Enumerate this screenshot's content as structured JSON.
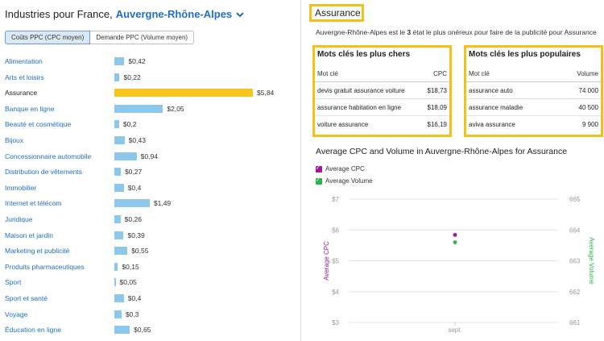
{
  "header": {
    "title_prefix": "Industries pour France,",
    "region": "Auvergne-Rhône-Alpes"
  },
  "toggle": {
    "cpc_label": "Coûts PPC (CPC moyen)",
    "demand_label": "Demande PPC (Volume moyen)"
  },
  "industries": [
    {
      "label": "Alimentation",
      "value": 0.42,
      "display": "$0,42"
    },
    {
      "label": "Arts et loisirs",
      "value": 0.22,
      "display": "$0,22"
    },
    {
      "label": "Assurance",
      "value": 5.84,
      "display": "$5,84",
      "selected": true
    },
    {
      "label": "Banque en ligne",
      "value": 2.05,
      "display": "$2,05"
    },
    {
      "label": "Beauté et cosmétique",
      "value": 0.2,
      "display": "$0,2"
    },
    {
      "label": "Bijoux",
      "value": 0.43,
      "display": "$0,43"
    },
    {
      "label": "Concessionnaire automobile",
      "value": 0.94,
      "display": "$0,94"
    },
    {
      "label": "Distribution de vêtements",
      "value": 0.27,
      "display": "$0,27"
    },
    {
      "label": "Immobilier",
      "value": 0.4,
      "display": "$0,4"
    },
    {
      "label": "Internet et télécom",
      "value": 1.49,
      "display": "$1,49"
    },
    {
      "label": "Juridique",
      "value": 0.26,
      "display": "$0,26"
    },
    {
      "label": "Maison et jardin",
      "value": 0.39,
      "display": "$0,39"
    },
    {
      "label": "Marketing et publicité",
      "value": 0.55,
      "display": "$0,55"
    },
    {
      "label": "Produits pharmaceutiques",
      "value": 0.15,
      "display": "$0,15"
    },
    {
      "label": "Sport",
      "value": 0.05,
      "display": "$0,05"
    },
    {
      "label": "Sport et santé",
      "value": 0.4,
      "display": "$0,4"
    },
    {
      "label": "Voyage",
      "value": 0.3,
      "display": "$0,3"
    },
    {
      "label": "Éducation en ligne",
      "value": 0.65,
      "display": "$0,65"
    }
  ],
  "detail": {
    "title": "Assurance",
    "subtitle_pre": "Auvergne-Rhône-Alpes est le ",
    "subtitle_rank": "3",
    "subtitle_post": " état le plus onéreux pour faire de la publicité pour Assurance",
    "expensive": {
      "heading": "Mots clés les plus chers",
      "col_keyword": "Mot clé",
      "col_value": "CPC",
      "rows": [
        {
          "keyword": "devis gratuit assurance voiture",
          "value": "$18,73"
        },
        {
          "keyword": "assurance habitation en ligne",
          "value": "$18,09"
        },
        {
          "keyword": "voiture assurance",
          "value": "$16,19"
        }
      ]
    },
    "popular": {
      "heading": "Mots clés les plus populaires",
      "col_keyword": "Mot clé",
      "col_value": "Volume",
      "rows": [
        {
          "keyword": "assurance auto",
          "value": "74 000"
        },
        {
          "keyword": "assurance maladie",
          "value": "40 500"
        },
        {
          "keyword": "aviva assurance",
          "value": "9 900"
        }
      ]
    }
  },
  "chart_data": {
    "type": "scatter",
    "title": "Average CPC and Volume in Auvergne-Rhône-Alpes for Assurance",
    "categories": [
      "sept."
    ],
    "left_axis": {
      "label": "Average CPC",
      "ticks": [
        "$7",
        "$6",
        "$5",
        "$4",
        "$3"
      ],
      "ylim": [
        3,
        7
      ]
    },
    "right_axis": {
      "label": "Average Volume",
      "ticks": [
        "665",
        "664",
        "663",
        "662",
        "661"
      ],
      "ylim": [
        661,
        665
      ]
    },
    "series": [
      {
        "name": "Average CPC",
        "values": [
          5.84
        ],
        "color": "#9c1a9c",
        "axis": "left"
      },
      {
        "name": "Average Volume",
        "values": [
          663.6
        ],
        "color": "#2db34a",
        "axis": "right"
      }
    ],
    "grid": true,
    "legend_position": "top-left"
  }
}
